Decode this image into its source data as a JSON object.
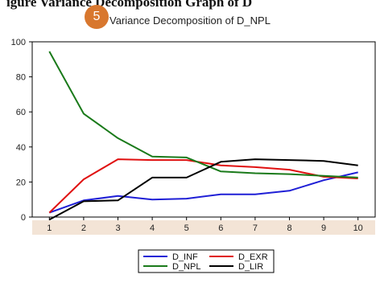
{
  "heading": "igure Variance Decomposition Graph of D",
  "badge": "5",
  "chart_data": {
    "type": "line",
    "title": "Variance Decomposition of D_NPL",
    "x": [
      1,
      2,
      3,
      4,
      5,
      6,
      7,
      8,
      9,
      10
    ],
    "ylim": [
      0,
      100
    ],
    "yticks": [
      0,
      20,
      40,
      60,
      80,
      100
    ],
    "grid": false,
    "legend_position": "bottom",
    "series": [
      {
        "name": "D_INF",
        "color": "#1f1fd6",
        "values": [
          2.5,
          9.5,
          12,
          10,
          10.5,
          13,
          13,
          15,
          21,
          25.5
        ]
      },
      {
        "name": "D_EXR",
        "color": "#e01010",
        "values": [
          2.5,
          21.5,
          33,
          32.5,
          32.5,
          29.5,
          28.5,
          27,
          23,
          22
        ]
      },
      {
        "name": "D_NPL",
        "color": "#1a7a1a",
        "values": [
          94.5,
          59,
          45,
          34.5,
          34,
          26,
          25,
          24.5,
          23.5,
          22.5
        ]
      },
      {
        "name": "D_LIR",
        "color": "#000000",
        "values": [
          -1.5,
          9,
          9.5,
          22.5,
          22.5,
          31.5,
          33,
          32.5,
          32,
          29.5
        ]
      }
    ]
  }
}
